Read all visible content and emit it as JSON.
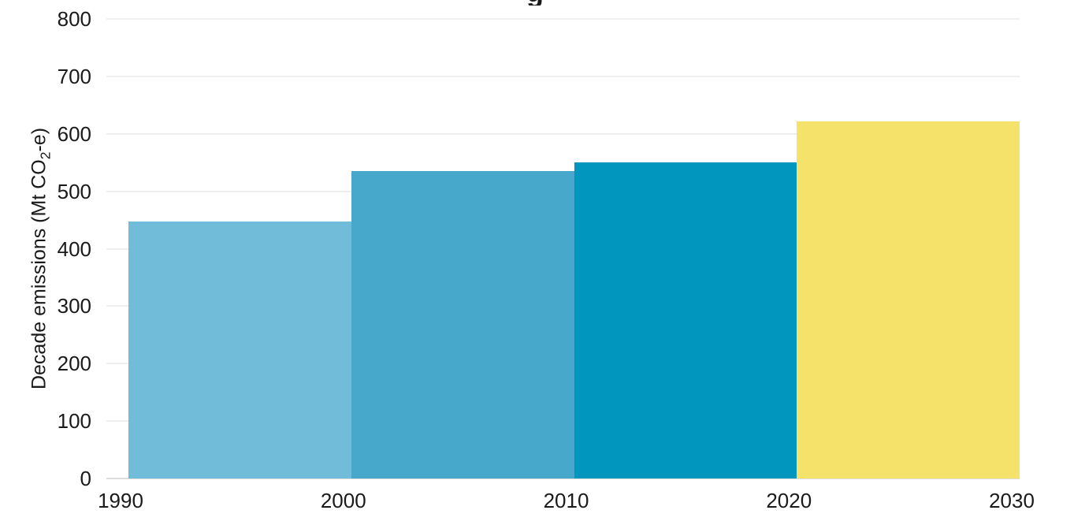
{
  "title_fragment": "g",
  "colors": {
    "background": "#ffffff",
    "gridline": "#efefef",
    "zero_axis_line": "#dcdcdc",
    "text": "#1a1a1a"
  },
  "chart_data": {
    "type": "bar",
    "title": "",
    "xlabel": "",
    "ylabel": "Decade emissions (Mt CO2-e)",
    "ylabel_parts": {
      "pre": "Decade emissions (Mt CO",
      "sub": "2",
      "post": "-e)"
    },
    "ylim": [
      0,
      800
    ],
    "y_tick_values": [
      0,
      100,
      200,
      300,
      400,
      500,
      600,
      700,
      800
    ],
    "x_tick_labels": [
      "1990",
      "2000",
      "2010",
      "2020",
      "2030"
    ],
    "grid": "horizontal",
    "legend_position": "none",
    "bars": [
      {
        "decade": "1990-2000",
        "value": 447,
        "color": "#71bcd9"
      },
      {
        "decade": "2000-2010",
        "value": 535,
        "color": "#47a8cc"
      },
      {
        "decade": "2010-2020",
        "value": 550,
        "color": "#0096bd"
      },
      {
        "decade": "2020-2030",
        "value": 622,
        "color": "#f4e26a"
      }
    ]
  }
}
